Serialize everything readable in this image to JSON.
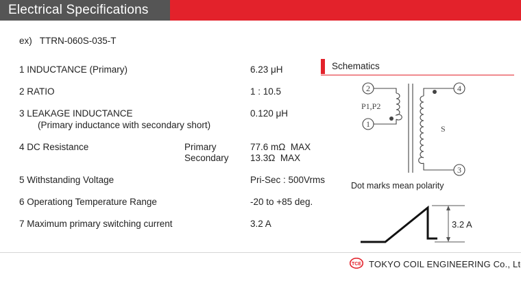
{
  "header": {
    "title": "Electrical Specifications"
  },
  "example": {
    "text": "ex)   TTRN-060S-035-T"
  },
  "specs": [
    {
      "label": "1 INDUCTANCE (Primary)",
      "value": "6.23 μH"
    },
    {
      "label": "2 RATIO",
      "value": "1 : 10.5"
    },
    {
      "label": "3 LEAKAGE INDUCTANCE",
      "sublabel": "(Primary inductance with secondary short)",
      "value": "0.120 μH"
    },
    {
      "label": "4 DC Resistance",
      "sub_primary": "Primary",
      "sub_secondary": "Secondary",
      "value_primary": "77.6 mΩ  MAX",
      "value_secondary": "13.3Ω  MAX"
    },
    {
      "label": "5 Withstanding Voltage",
      "value": "Pri-Sec : 500Vrms"
    },
    {
      "label": "6 Operationg Temperature Range",
      "value": "-20 to +85 deg."
    },
    {
      "label": "7 Maximum primary switching current",
      "value": "3.2 A"
    }
  ],
  "schematic": {
    "title": "Schematics",
    "pin2": "2",
    "pin1": "1",
    "pin4": "4",
    "pin3": "3",
    "primary_label": "P1,P2",
    "secondary_label": "S",
    "note": "Dot marks mean polarity"
  },
  "waveform": {
    "label": "3.2 A"
  },
  "footer": {
    "company": "TOKYO COIL ENGINEERING Co., Ltd.",
    "logo_text": "TCE"
  },
  "colors": {
    "accent": "#e3222b",
    "title_box": "#555555"
  }
}
